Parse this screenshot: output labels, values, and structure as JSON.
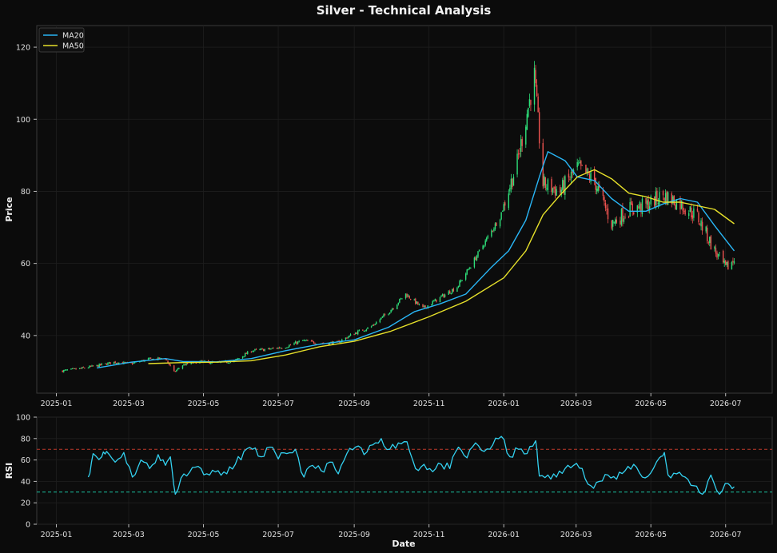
{
  "title": "Silver - Technical Analysis",
  "colors": {
    "background": "#0b0b0b",
    "panel": "#0c0c0c",
    "frame": "#3a3a3a",
    "grid": "#1e1e1e",
    "up": "#2ee07a",
    "down": "#ef5350",
    "ma20": "#29b6f6",
    "ma50": "#e6e02a",
    "rsi": "#33d1f0",
    "overbought": "#c0392b",
    "oversold": "#1abc9c",
    "text": "#e6e6e6"
  },
  "chart_data": [
    {
      "type": "candlestick",
      "ylabel": "Price",
      "ylim": [
        24,
        126
      ],
      "yticks": [
        40,
        60,
        80,
        100,
        120
      ],
      "xlim": [
        "2024-12-16",
        "2026-08-08"
      ],
      "xticks": [
        "2025-01",
        "2025-03",
        "2025-05",
        "2025-07",
        "2025-09",
        "2025-11",
        "2026-01",
        "2026-03",
        "2026-05",
        "2026-07"
      ],
      "grid": true,
      "legend": {
        "placement": "top-left",
        "entries": [
          "MA20",
          "MA50"
        ]
      },
      "price_anchors": [
        [
          "2025-01-06",
          30.2
        ],
        [
          "2025-01-20",
          30.8
        ],
        [
          "2025-02-03",
          31.6
        ],
        [
          "2025-02-17",
          32.6
        ],
        [
          "2025-03-03",
          32.2
        ],
        [
          "2025-03-17",
          33.4
        ],
        [
          "2025-03-31",
          33.6
        ],
        [
          "2025-04-07",
          29.8
        ],
        [
          "2025-04-14",
          31.8
        ],
        [
          "2025-04-28",
          32.8
        ],
        [
          "2025-05-12",
          32.4
        ],
        [
          "2025-05-26",
          32.9
        ],
        [
          "2025-06-09",
          35.8
        ],
        [
          "2025-06-23",
          36.2
        ],
        [
          "2025-07-07",
          36.9
        ],
        [
          "2025-07-21",
          38.6
        ],
        [
          "2025-08-04",
          37.8
        ],
        [
          "2025-08-18",
          38.0
        ],
        [
          "2025-09-01",
          40.6
        ],
        [
          "2025-09-15",
          42.5
        ],
        [
          "2025-09-29",
          46.5
        ],
        [
          "2025-10-13",
          51.5
        ],
        [
          "2025-10-27",
          47.5
        ],
        [
          "2025-11-10",
          50.5
        ],
        [
          "2025-11-24",
          53.5
        ],
        [
          "2025-12-08",
          61.0
        ],
        [
          "2025-12-22",
          69.0
        ],
        [
          "2025-12-29",
          73.0
        ],
        [
          "2026-01-12",
          88.0
        ],
        [
          "2026-01-26",
          112.0
        ],
        [
          "2026-02-02",
          82.0
        ],
        [
          "2026-02-16",
          80.0
        ],
        [
          "2026-03-02",
          86.5
        ],
        [
          "2026-03-16",
          83.0
        ],
        [
          "2026-03-30",
          71.0
        ],
        [
          "2026-04-13",
          75.0
        ],
        [
          "2026-04-27",
          76.0
        ],
        [
          "2026-05-11",
          79.0
        ],
        [
          "2026-05-25",
          76.5
        ],
        [
          "2026-06-08",
          73.0
        ],
        [
          "2026-06-22",
          63.5
        ],
        [
          "2026-07-01",
          58.5
        ],
        [
          "2026-07-08",
          61.0
        ]
      ],
      "series": [
        {
          "name": "MA20",
          "points": [
            [
              "2025-02-03",
              31.0
            ],
            [
              "2025-03-03",
              32.6
            ],
            [
              "2025-03-31",
              33.6
            ],
            [
              "2025-04-14",
              32.8
            ],
            [
              "2025-05-12",
              32.7
            ],
            [
              "2025-06-09",
              33.6
            ],
            [
              "2025-07-07",
              35.8
            ],
            [
              "2025-08-04",
              37.6
            ],
            [
              "2025-09-01",
              38.8
            ],
            [
              "2025-09-29",
              42.3
            ],
            [
              "2025-10-20",
              46.6
            ],
            [
              "2025-11-10",
              48.8
            ],
            [
              "2025-12-01",
              51.5
            ],
            [
              "2025-12-22",
              59.0
            ],
            [
              "2026-01-05",
              63.5
            ],
            [
              "2026-01-19",
              72.0
            ],
            [
              "2026-01-30",
              84.0
            ],
            [
              "2026-02-06",
              91.0
            ],
            [
              "2026-02-20",
              88.5
            ],
            [
              "2026-03-02",
              84.0
            ],
            [
              "2026-03-16",
              83.0
            ],
            [
              "2026-03-30",
              78.0
            ],
            [
              "2026-04-13",
              74.5
            ],
            [
              "2026-04-27",
              74.5
            ],
            [
              "2026-05-11",
              76.5
            ],
            [
              "2026-05-25",
              78.0
            ],
            [
              "2026-06-08",
              77.0
            ],
            [
              "2026-06-22",
              70.5
            ],
            [
              "2026-07-08",
              63.5
            ]
          ]
        },
        {
          "name": "MA50",
          "points": [
            [
              "2025-03-17",
              32.2
            ],
            [
              "2025-04-14",
              32.5
            ],
            [
              "2025-05-12",
              32.6
            ],
            [
              "2025-06-09",
              33.0
            ],
            [
              "2025-07-07",
              34.6
            ],
            [
              "2025-08-04",
              36.9
            ],
            [
              "2025-09-01",
              38.4
            ],
            [
              "2025-10-01",
              41.2
            ],
            [
              "2025-11-01",
              45.2
            ],
            [
              "2025-12-01",
              49.5
            ],
            [
              "2026-01-01",
              56.0
            ],
            [
              "2026-01-19",
              63.5
            ],
            [
              "2026-02-02",
              73.5
            ],
            [
              "2026-02-16",
              79.0
            ],
            [
              "2026-03-02",
              84.0
            ],
            [
              "2026-03-16",
              86.0
            ],
            [
              "2026-03-30",
              83.5
            ],
            [
              "2026-04-13",
              79.5
            ],
            [
              "2026-04-27",
              78.5
            ],
            [
              "2026-05-11",
              77.0
            ],
            [
              "2026-05-25",
              77.0
            ],
            [
              "2026-06-08",
              76.0
            ],
            [
              "2026-06-22",
              75.0
            ],
            [
              "2026-07-08",
              71.0
            ]
          ]
        }
      ]
    },
    {
      "type": "line",
      "xlabel": "Date",
      "ylabel": "RSI",
      "ylim": [
        0,
        100
      ],
      "yticks": [
        0,
        20,
        40,
        60,
        80,
        100
      ],
      "xlim": [
        "2024-12-16",
        "2026-08-08"
      ],
      "xticks": [
        "2025-01",
        "2025-03",
        "2025-05",
        "2025-07",
        "2025-09",
        "2025-11",
        "2026-01",
        "2026-03",
        "2026-05",
        "2026-07"
      ],
      "reference_lines": [
        70,
        30
      ],
      "grid": true,
      "series": [
        {
          "name": "",
          "points": [
            [
              "2025-01-27",
              44
            ],
            [
              "2025-01-31",
              66
            ],
            [
              "2025-02-07",
              63
            ],
            [
              "2025-02-11",
              68
            ],
            [
              "2025-02-18",
              58
            ],
            [
              "2025-02-25",
              67
            ],
            [
              "2025-03-04",
              44
            ],
            [
              "2025-03-11",
              60
            ],
            [
              "2025-03-18",
              52
            ],
            [
              "2025-03-25",
              65
            ],
            [
              "2025-03-31",
              55
            ],
            [
              "2025-04-04",
              63
            ],
            [
              "2025-04-08",
              28
            ],
            [
              "2025-04-15",
              47
            ],
            [
              "2025-04-22",
              53
            ],
            [
              "2025-04-29",
              52
            ],
            [
              "2025-05-06",
              46
            ],
            [
              "2025-05-13",
              50
            ],
            [
              "2025-05-20",
              47
            ],
            [
              "2025-05-27",
              56
            ],
            [
              "2025-06-03",
              68
            ],
            [
              "2025-06-10",
              70
            ],
            [
              "2025-06-17",
              63
            ],
            [
              "2025-06-24",
              72
            ],
            [
              "2025-07-01",
              61
            ],
            [
              "2025-07-08",
              66
            ],
            [
              "2025-07-15",
              70
            ],
            [
              "2025-07-22",
              44
            ],
            [
              "2025-07-29",
              55
            ],
            [
              "2025-08-05",
              50
            ],
            [
              "2025-08-12",
              58
            ],
            [
              "2025-08-19",
              47
            ],
            [
              "2025-08-26",
              66
            ],
            [
              "2025-09-02",
              72
            ],
            [
              "2025-09-09",
              65
            ],
            [
              "2025-09-16",
              74
            ],
            [
              "2025-09-23",
              80
            ],
            [
              "2025-09-30",
              70
            ],
            [
              "2025-10-07",
              76
            ],
            [
              "2025-10-14",
              77
            ],
            [
              "2025-10-21",
              52
            ],
            [
              "2025-10-28",
              56
            ],
            [
              "2025-11-04",
              49
            ],
            [
              "2025-11-11",
              56
            ],
            [
              "2025-11-18",
              52
            ],
            [
              "2025-11-25",
              72
            ],
            [
              "2025-12-02",
              62
            ],
            [
              "2025-12-09",
              76
            ],
            [
              "2025-12-16",
              68
            ],
            [
              "2025-12-23",
              74
            ],
            [
              "2025-12-30",
              82
            ],
            [
              "2026-01-06",
              63
            ],
            [
              "2026-01-13",
              70
            ],
            [
              "2026-01-20",
              66
            ],
            [
              "2026-01-27",
              78
            ],
            [
              "2026-01-30",
              45
            ],
            [
              "2026-02-06",
              46
            ],
            [
              "2026-02-13",
              44
            ],
            [
              "2026-02-20",
              52
            ],
            [
              "2026-02-27",
              55
            ],
            [
              "2026-03-06",
              52
            ],
            [
              "2026-03-13",
              36
            ],
            [
              "2026-03-20",
              40
            ],
            [
              "2026-03-27",
              46
            ],
            [
              "2026-04-03",
              42
            ],
            [
              "2026-04-10",
              50
            ],
            [
              "2026-04-17",
              56
            ],
            [
              "2026-04-24",
              44
            ],
            [
              "2026-05-01",
              48
            ],
            [
              "2026-05-08",
              62
            ],
            [
              "2026-05-12",
              67
            ],
            [
              "2026-05-15",
              46
            ],
            [
              "2026-05-22",
              47
            ],
            [
              "2026-05-29",
              44
            ],
            [
              "2026-06-05",
              36
            ],
            [
              "2026-06-12",
              28
            ],
            [
              "2026-06-19",
              46
            ],
            [
              "2026-06-26",
              28
            ],
            [
              "2026-07-03",
              38
            ],
            [
              "2026-07-08",
              35
            ]
          ]
        }
      ]
    }
  ]
}
